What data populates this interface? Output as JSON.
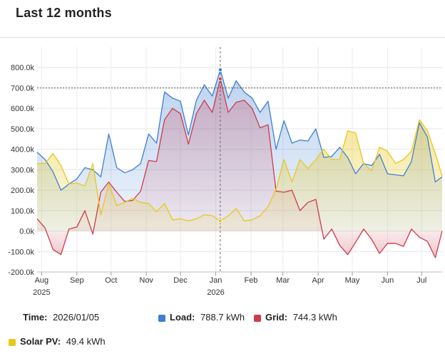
{
  "header": {
    "title": "Last 12 months"
  },
  "colors": {
    "load": "#3f7fd2",
    "grid": "#cc3b4e",
    "solar": "#e8c81f",
    "refline": "#555555",
    "cursor": "#666666"
  },
  "chart_data": {
    "type": "area",
    "ylim": [
      -200000,
      900000
    ],
    "yticks": [
      {
        "value": -200000,
        "label": "-200.0k"
      },
      {
        "value": -100000,
        "label": "-100.0k"
      },
      {
        "value": 0,
        "label": "0.0k"
      },
      {
        "value": 100000,
        "label": "100.0k"
      },
      {
        "value": 200000,
        "label": "200.0k"
      },
      {
        "value": 300000,
        "label": "300.0k"
      },
      {
        "value": 400000,
        "label": "400.0k"
      },
      {
        "value": 500000,
        "label": "500.0k"
      },
      {
        "value": 600000,
        "label": "600.0k"
      },
      {
        "value": 700000,
        "label": "700.0k"
      },
      {
        "value": 800000,
        "label": "800.0k"
      }
    ],
    "xlim": [
      "2025-07-28",
      "2026-07-19"
    ],
    "xticks": [
      {
        "date": "2025-08-01",
        "label": "Aug",
        "sub": "2025"
      },
      {
        "date": "2025-09-01",
        "label": "Sep",
        "sub": ""
      },
      {
        "date": "2025-10-01",
        "label": "Oct",
        "sub": ""
      },
      {
        "date": "2025-11-01",
        "label": "Nov",
        "sub": ""
      },
      {
        "date": "2025-12-01",
        "label": "Dec",
        "sub": ""
      },
      {
        "date": "2026-01-01",
        "label": "Jan",
        "sub": "2026"
      },
      {
        "date": "2026-02-01",
        "label": "Feb",
        "sub": ""
      },
      {
        "date": "2026-03-01",
        "label": "Mar",
        "sub": ""
      },
      {
        "date": "2026-04-01",
        "label": "Apr",
        "sub": ""
      },
      {
        "date": "2026-05-01",
        "label": "May",
        "sub": ""
      },
      {
        "date": "2026-06-01",
        "label": "Jun",
        "sub": ""
      },
      {
        "date": "2026-07-01",
        "label": "Jul",
        "sub": ""
      }
    ],
    "reference_line": 700000,
    "cursor_date": "2026-01-05",
    "x": [
      "2025-07-28",
      "2025-08-04",
      "2025-08-11",
      "2025-08-18",
      "2025-08-25",
      "2025-09-01",
      "2025-09-08",
      "2025-09-15",
      "2025-09-22",
      "2025-09-29",
      "2025-10-06",
      "2025-10-13",
      "2025-10-20",
      "2025-10-27",
      "2025-11-03",
      "2025-11-10",
      "2025-11-17",
      "2025-11-24",
      "2025-12-01",
      "2025-12-08",
      "2025-12-15",
      "2025-12-22",
      "2025-12-29",
      "2026-01-05",
      "2026-01-12",
      "2026-01-19",
      "2026-01-26",
      "2026-02-02",
      "2026-02-09",
      "2026-02-16",
      "2026-02-23",
      "2026-03-02",
      "2026-03-09",
      "2026-03-16",
      "2026-03-23",
      "2026-03-30",
      "2026-04-06",
      "2026-04-13",
      "2026-04-20",
      "2026-04-27",
      "2026-05-04",
      "2026-05-11",
      "2026-05-18",
      "2026-05-25",
      "2026-06-01",
      "2026-06-08",
      "2026-06-15",
      "2026-06-22",
      "2026-06-29",
      "2026-07-06",
      "2026-07-13",
      "2026-07-19"
    ],
    "series": [
      {
        "name": "Load",
        "values": [
          385000,
          350000,
          290000,
          200000,
          230000,
          255000,
          310000,
          300000,
          265000,
          475000,
          310000,
          285000,
          300000,
          330000,
          475000,
          430000,
          680000,
          650000,
          635000,
          470000,
          640000,
          715000,
          660000,
          788700,
          650000,
          735000,
          680000,
          650000,
          580000,
          635000,
          400000,
          540000,
          430000,
          445000,
          440000,
          500000,
          360000,
          365000,
          410000,
          360000,
          280000,
          330000,
          320000,
          375000,
          280000,
          275000,
          270000,
          340000,
          530000,
          460000,
          240000,
          265000
        ]
      },
      {
        "name": "Grid",
        "values": [
          60000,
          15000,
          -90000,
          -115000,
          10000,
          20000,
          100000,
          -15000,
          190000,
          240000,
          190000,
          145000,
          150000,
          195000,
          345000,
          340000,
          545000,
          600000,
          575000,
          425000,
          575000,
          640000,
          580000,
          744300,
          580000,
          630000,
          640000,
          600000,
          505000,
          520000,
          195000,
          190000,
          200000,
          100000,
          140000,
          155000,
          -40000,
          10000,
          -70000,
          -115000,
          -55000,
          10000,
          -40000,
          -110000,
          -60000,
          -60000,
          -75000,
          10000,
          -30000,
          -50000,
          -130000,
          0
        ]
      },
      {
        "name": "Solar PV",
        "values": [
          330000,
          330000,
          380000,
          320000,
          230000,
          235000,
          220000,
          330000,
          80000,
          230000,
          125000,
          140000,
          160000,
          140000,
          135000,
          95000,
          135000,
          55000,
          60000,
          50000,
          60000,
          80000,
          75000,
          49400,
          75000,
          110000,
          50000,
          55000,
          75000,
          120000,
          205000,
          350000,
          240000,
          350000,
          305000,
          350000,
          400000,
          350000,
          350000,
          490000,
          480000,
          330000,
          295000,
          410000,
          390000,
          330000,
          350000,
          390000,
          545000,
          490000,
          380000,
          270000
        ]
      }
    ]
  },
  "info": {
    "time_label": "Time:",
    "time_value": "2026/01/05",
    "load_label": "Load:",
    "load_value": "788.7 kWh",
    "grid_label": "Grid:",
    "grid_value": "744.3 kWh",
    "solar_label": "Solar PV:",
    "solar_value": "49.4 kWh"
  }
}
